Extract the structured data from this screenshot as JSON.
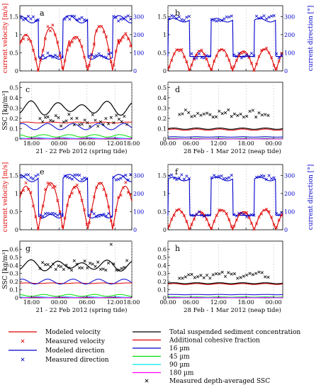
{
  "figure": {
    "y_labels": {
      "velocity": "current velocity [m/s]",
      "direction": "current direction [°]",
      "ssc": "SSC [kg/m³]"
    },
    "x_captions": {
      "spring": "21 - 22 Feb 2012 (spring tide)",
      "neap": "28 Feb - 1 Mar 2012 (neap tide)"
    },
    "ticks": {
      "spring_x": [
        "18:00",
        "00:00",
        "06:00",
        "12:00",
        "18:00"
      ],
      "neap_x": [
        "00:00",
        "06:00",
        "12:00",
        "18:00",
        "00:00"
      ],
      "velocity_y": [
        "0",
        "0.5",
        "1",
        "1.5"
      ],
      "direction_y": [
        "0",
        "100",
        "200",
        "300"
      ],
      "ssc_top_y": [
        "0",
        "0.1",
        "0.2",
        "0.3",
        "0.4",
        "0.5"
      ],
      "ssc_bot_y": [
        "0",
        "0.1",
        "0.2",
        "0.3",
        "0.4",
        "0.5",
        "0.6"
      ]
    },
    "legend": [
      {
        "id": "mod_vel",
        "label": "Modeled velocity",
        "kind": "line",
        "color": "#e00000"
      },
      {
        "id": "meas_vel",
        "label": "Measured velocity",
        "kind": "cross",
        "color": "#e00000"
      },
      {
        "id": "mod_dir",
        "label": "Modeled direction",
        "kind": "line",
        "color": "#0000cc"
      },
      {
        "id": "meas_dir",
        "label": "Measured direction",
        "kind": "cross",
        "color": "#0000cc"
      },
      {
        "id": "tss",
        "label": "Total suspended sediment concentration",
        "kind": "line",
        "color": "#000000"
      },
      {
        "id": "coh",
        "label": "Additional cohesive fraction",
        "kind": "line",
        "color": "#e00000"
      },
      {
        "id": "f16",
        "label": "16 µm",
        "kind": "line",
        "color": "#0000cc"
      },
      {
        "id": "f45",
        "label": "45 µm",
        "kind": "line",
        "color": "#00dd00"
      },
      {
        "id": "f90",
        "label": "90 µm",
        "kind": "line",
        "color": "#00e6e6"
      },
      {
        "id": "f180",
        "label": "180 µm",
        "kind": "line",
        "color": "#ff00ff"
      },
      {
        "id": "meas_ssc",
        "label": "Measured depth-averaged SSC",
        "kind": "cross",
        "color": "#000000"
      }
    ]
  },
  "chart_data": [
    {
      "panel": "a",
      "type": "line",
      "xlabel": "",
      "tide": "spring",
      "ylim_left": [
        0,
        1.8
      ],
      "ylim_right": [
        0,
        360
      ],
      "peaks": [
        1.0,
        1.2,
        0.95,
        1.25,
        1.0
      ],
      "period_hours": 12.4,
      "x_hours": [
        14,
        42
      ]
    },
    {
      "panel": "b",
      "type": "line",
      "xlabel": "",
      "tide": "neap",
      "ylim_left": [
        0,
        1.8
      ],
      "ylim_right": [
        0,
        360
      ],
      "peaks": [
        0.6,
        0.55,
        0.6,
        0.55,
        0.6
      ],
      "period_hours": 12.4,
      "x_hours": [
        0,
        33
      ]
    },
    {
      "panel": "c",
      "type": "line",
      "xlabel": "21 - 22 Feb 2012 (spring tide)",
      "tide": "spring",
      "ylim": [
        0,
        0.55
      ],
      "series": [
        {
          "name": "Total suspended sediment concentration",
          "level": 0.3
        },
        {
          "name": "Additional cohesive fraction",
          "level": 0.16
        },
        {
          "name": "16 µm",
          "level": 0.12
        },
        {
          "name": "45 µm",
          "level": 0.03
        },
        {
          "name": "90 µm",
          "level": 0.01
        },
        {
          "name": "180 µm",
          "level": 0.005
        },
        {
          "name": "Measured depth-averaged SSC",
          "level": 0.18
        }
      ]
    },
    {
      "panel": "d",
      "type": "line",
      "xlabel": "28 Feb - 1 Mar 2012 (neap tide)",
      "tide": "neap",
      "ylim": [
        0,
        0.55
      ],
      "series": [
        {
          "name": "Total suspended sediment concentration",
          "level": 0.1
        },
        {
          "name": "Additional cohesive fraction",
          "level": 0.09
        },
        {
          "name": "16 µm",
          "level": 0.02
        },
        {
          "name": "45 µm",
          "level": 0.005
        },
        {
          "name": "90 µm",
          "level": 0.002
        },
        {
          "name": "180 µm",
          "level": 0.001
        },
        {
          "name": "Measured depth-averaged SSC",
          "level": 0.25
        }
      ]
    },
    {
      "panel": "e",
      "type": "line",
      "xlabel": "",
      "tide": "spring",
      "ylim_left": [
        0,
        1.8
      ],
      "ylim_right": [
        0,
        360
      ],
      "peaks": [
        1.2,
        1.3,
        1.2,
        1.3,
        1.2
      ],
      "period_hours": 12.4,
      "x_hours": [
        14,
        42
      ]
    },
    {
      "panel": "f",
      "type": "line",
      "xlabel": "",
      "tide": "neap",
      "ylim_left": [
        0,
        1.8
      ],
      "ylim_right": [
        0,
        360
      ],
      "peaks": [
        0.55,
        0.5,
        0.55,
        0.5,
        0.55
      ],
      "period_hours": 12.4,
      "x_hours": [
        0,
        33
      ]
    },
    {
      "panel": "g",
      "type": "line",
      "xlabel": "21 - 22 Feb 2012 (spring tide)",
      "tide": "spring",
      "ylim": [
        0,
        0.7
      ],
      "series": [
        {
          "name": "Total suspended sediment concentration",
          "level": 0.4
        },
        {
          "name": "Additional cohesive fraction",
          "level": 0.18
        },
        {
          "name": "16 µm",
          "level": 0.2
        },
        {
          "name": "45 µm",
          "level": 0.03
        },
        {
          "name": "90 µm",
          "level": 0.01
        },
        {
          "name": "180 µm",
          "level": 0.005
        },
        {
          "name": "Measured depth-averaged SSC",
          "level": 0.4
        }
      ]
    },
    {
      "panel": "h",
      "type": "line",
      "xlabel": "28 Feb - 1 Mar 2012 (neap tide)",
      "tide": "neap",
      "ylim": [
        0,
        0.7
      ],
      "series": [
        {
          "name": "Total suspended sediment concentration",
          "level": 0.18
        },
        {
          "name": "Additional cohesive fraction",
          "level": 0.17
        },
        {
          "name": "16 µm",
          "level": 0.04
        },
        {
          "name": "45 µm",
          "level": 0.01
        },
        {
          "name": "90 µm",
          "level": 0.005
        },
        {
          "name": "180 µm",
          "level": 0.002
        },
        {
          "name": "Measured depth-averaged SSC",
          "level": 0.28
        }
      ]
    }
  ]
}
